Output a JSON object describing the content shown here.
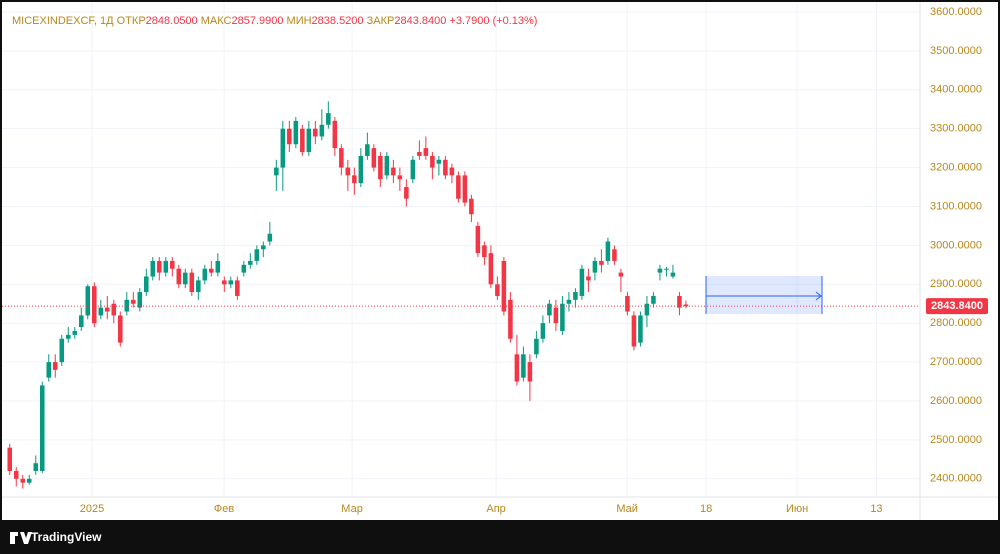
{
  "chart_data": {
    "type": "candlestick",
    "header": {
      "symbol": "MICEXINDEXCF, 1Д",
      "items": [
        {
          "label": "ОТКР",
          "value": "2848.0500"
        },
        {
          "label": "МАКС",
          "value": "2857.9900"
        },
        {
          "label": "МИН",
          "value": "2838.5200"
        },
        {
          "label": "ЗАКР",
          "value": "2843.8400"
        }
      ],
      "change": "+3.7900 (+0.13%)"
    },
    "open": [
      2480,
      2420,
      2400,
      2390,
      2420,
      2420,
      2660,
      2700,
      2700,
      2760,
      2770,
      2790,
      2820,
      2895,
      2820,
      2840,
      2850,
      2820,
      2830,
      2860,
      2840,
      2880,
      2920,
      2960,
      2930,
      2960,
      2940,
      2900,
      2930,
      2880,
      2910,
      2940,
      2930,
      2910,
      2900,
      2910,
      2930,
      2950,
      2960,
      2990,
      3010,
      3180,
      3200,
      3300,
      3260,
      3300,
      3240,
      3300,
      3280,
      3310,
      3320,
      3250,
      3200,
      3180,
      3160,
      3230,
      3250,
      3230,
      3180,
      3200,
      3180,
      3150,
      3170,
      3240,
      3250,
      3230,
      3210,
      3220,
      3200,
      3180,
      3180,
      3120,
      3050,
      3000,
      2980,
      2900,
      2960,
      2860,
      2720,
      2660,
      2700,
      2720,
      2760,
      2820,
      2840,
      2780,
      2850,
      2860,
      2870,
      2920,
      2930,
      2960,
      2960,
      2990,
      2930,
      2870,
      2820,
      2750,
      2820,
      2850,
      2930,
      2940,
      2920,
      2870,
      2848.05
    ],
    "high": [
      2490,
      2430,
      2410,
      2410,
      2460,
      2650,
      2720,
      2720,
      2770,
      2790,
      2790,
      2840,
      2900,
      2905,
      2860,
      2870,
      2860,
      2830,
      2880,
      2880,
      2890,
      2940,
      2970,
      2970,
      2970,
      2970,
      2950,
      2940,
      2940,
      2920,
      2950,
      2960,
      2980,
      2920,
      2920,
      2920,
      2960,
      2980,
      3000,
      3010,
      3060,
      3220,
      3320,
      3320,
      3330,
      3310,
      3320,
      3320,
      3350,
      3370,
      3330,
      3260,
      3220,
      3200,
      3250,
      3290,
      3260,
      3240,
      3240,
      3220,
      3200,
      3170,
      3230,
      3270,
      3280,
      3240,
      3230,
      3230,
      3210,
      3190,
      3190,
      3130,
      3060,
      3010,
      3000,
      2920,
      2970,
      2880,
      2770,
      2740,
      2720,
      2780,
      2820,
      2860,
      2860,
      2870,
      2880,
      2890,
      2950,
      2940,
      2970,
      2990,
      3020,
      3000,
      2940,
      2880,
      2830,
      2830,
      2870,
      2880,
      2950,
      2945,
      2950,
      2880,
      2857.99
    ],
    "low": [
      2410,
      2380,
      2375,
      2385,
      2410,
      2415,
      2650,
      2660,
      2690,
      2750,
      2760,
      2780,
      2810,
      2790,
      2810,
      2810,
      2800,
      2740,
      2820,
      2840,
      2830,
      2870,
      2910,
      2910,
      2920,
      2920,
      2890,
      2890,
      2870,
      2860,
      2900,
      2920,
      2920,
      2880,
      2890,
      2860,
      2920,
      2940,
      2950,
      2970,
      3000,
      3140,
      3140,
      3240,
      3250,
      3230,
      3230,
      3260,
      3270,
      3300,
      3230,
      3180,
      3140,
      3130,
      3150,
      3220,
      3190,
      3150,
      3170,
      3160,
      3140,
      3100,
      3160,
      3220,
      3220,
      3170,
      3180,
      3170,
      3160,
      3110,
      3100,
      3060,
      2970,
      2950,
      2890,
      2860,
      2820,
      2750,
      2640,
      2650,
      2600,
      2710,
      2750,
      2800,
      2780,
      2770,
      2830,
      2840,
      2860,
      2880,
      2910,
      2930,
      2950,
      2950,
      2880,
      2820,
      2730,
      2740,
      2790,
      2840,
      2910,
      2920,
      2915,
      2820,
      2838.52
    ],
    "close": [
      2420,
      2400,
      2390,
      2400,
      2440,
      2640,
      2700,
      2680,
      2760,
      2770,
      2780,
      2820,
      2895,
      2800,
      2840,
      2830,
      2820,
      2750,
      2860,
      2850,
      2880,
      2920,
      2960,
      2930,
      2960,
      2940,
      2900,
      2930,
      2880,
      2910,
      2940,
      2930,
      2960,
      2900,
      2910,
      2870,
      2950,
      2960,
      2990,
      3000,
      3030,
      3200,
      3300,
      3260,
      3320,
      3240,
      3300,
      3280,
      3310,
      3340,
      3250,
      3200,
      3180,
      3160,
      3230,
      3260,
      3200,
      3170,
      3230,
      3180,
      3170,
      3120,
      3220,
      3230,
      3230,
      3200,
      3220,
      3180,
      3180,
      3120,
      3110,
      3080,
      2980,
      2970,
      2900,
      2870,
      2830,
      2760,
      2650,
      2720,
      2650,
      2760,
      2800,
      2850,
      2800,
      2850,
      2860,
      2880,
      2940,
      2910,
      2960,
      2950,
      3010,
      2960,
      2920,
      2830,
      2740,
      2820,
      2850,
      2870,
      2940,
      2940,
      2930,
      2840,
      2843.84
    ],
    "up_color": "#089981",
    "down_color": "#f23645",
    "xlim": [
      -1.5,
      140
    ],
    "xticks": [
      {
        "value": 12.65,
        "label": "2025"
      },
      {
        "value": 32.96,
        "label": "Фев"
      },
      {
        "value": 52.65,
        "label": "Мар"
      },
      {
        "value": 74.8,
        "label": "Апр"
      },
      {
        "value": 94.96,
        "label": "Май"
      },
      {
        "value": 107.1,
        "label": "18"
      },
      {
        "value": 121.1,
        "label": "Июн"
      },
      {
        "value": 133.3,
        "label": "13"
      }
    ],
    "ylim": [
      2353.2,
      3630.8
    ],
    "yticks": [
      {
        "value": 2400,
        "label": "2400.0000"
      },
      {
        "value": 2500,
        "label": "2500.0000"
      },
      {
        "value": 2600,
        "label": "2600.0000"
      },
      {
        "value": 2700,
        "label": "2700.0000"
      },
      {
        "value": 2800,
        "label": "2800.0000"
      },
      {
        "value": 2900,
        "label": "2900.0000"
      },
      {
        "value": 3000,
        "label": "3000.0000"
      },
      {
        "value": 3100,
        "label": "3100.0000"
      },
      {
        "value": 3200,
        "label": "3200.0000"
      },
      {
        "value": 3300,
        "label": "3300.0000"
      },
      {
        "value": 3400,
        "label": "3400.0000"
      },
      {
        "value": 3500,
        "label": "3500.0000"
      },
      {
        "value": 3600,
        "label": "3600.0000"
      }
    ],
    "grid": true,
    "last_price": {
      "value": 2843.84,
      "label": "2843.8400"
    },
    "brand": "TradingView"
  }
}
